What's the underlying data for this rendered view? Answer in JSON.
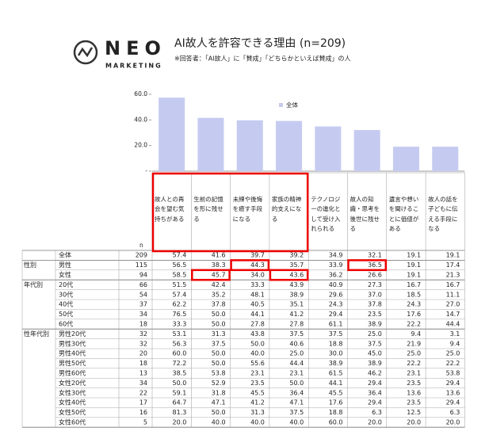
{
  "logo": {
    "name": "NEO",
    "sub": "MARKETING"
  },
  "chart_data": {
    "type": "bar",
    "title": "AI故人を許容できる理由 (n=209)",
    "subtitle": "※回答者：「AI故人」に「賛成」「どちらかといえば賛成」の人",
    "categories": [
      "故人との再会を望む気持ちがある",
      "生前の記憶を形に残せる",
      "未練や後悔を癒す手段になる",
      "家族の精神的支えになる",
      "テクノロジーの進化として受け入れられる",
      "故人の知識・思考を後世に残せる",
      "遺言や想いを聞けることに価値がある",
      "故人の話を子どもに伝える手段になる"
    ],
    "series": [
      {
        "name": "全体",
        "color": "#c5cbf0",
        "values": [
          57.4,
          41.6,
          39.7,
          39.2,
          34.9,
          32.1,
          19.1,
          19.1
        ]
      }
    ],
    "ylim": [
      0,
      60
    ],
    "yticks": [
      {
        "value": 0,
        "label": "-"
      },
      {
        "value": 20,
        "label": "20.0"
      },
      {
        "value": 40,
        "label": "40.0"
      },
      {
        "value": 60,
        "label": "60.0"
      }
    ],
    "legend": "top"
  },
  "table": {
    "n_header": "n",
    "sections": [
      {
        "rows": [
          {
            "label": "全体",
            "n": 209,
            "values": [
              "57.4",
              "41.6",
              "39.7",
              "39.2",
              "34.9",
              "32.1",
              "19.1",
              "19.1"
            ]
          }
        ]
      },
      {
        "label": "性別",
        "rows": [
          {
            "label": "男性",
            "n": 115,
            "values": [
              "56.5",
              "38.3",
              "44.3",
              "35.7",
              "33.9",
              "36.5",
              "19.1",
              "17.4"
            ]
          },
          {
            "label": "女性",
            "n": 94,
            "values": [
              "58.5",
              "45.7",
              "34.0",
              "43.6",
              "36.2",
              "26.6",
              "19.1",
              "21.3"
            ]
          }
        ]
      },
      {
        "label": "年代別",
        "rows": [
          {
            "label": "20代",
            "n": 66,
            "values": [
              "51.5",
              "42.4",
              "33.3",
              "43.9",
              "40.9",
              "27.3",
              "16.7",
              "16.7"
            ]
          },
          {
            "label": "30代",
            "n": 54,
            "values": [
              "57.4",
              "35.2",
              "48.1",
              "38.9",
              "29.6",
              "37.0",
              "18.5",
              "11.1"
            ]
          },
          {
            "label": "40代",
            "n": 37,
            "values": [
              "62.2",
              "37.8",
              "40.5",
              "35.1",
              "24.3",
              "37.8",
              "24.3",
              "27.0"
            ]
          },
          {
            "label": "50代",
            "n": 34,
            "values": [
              "76.5",
              "50.0",
              "44.1",
              "41.2",
              "29.4",
              "23.5",
              "17.6",
              "14.7"
            ]
          },
          {
            "label": "60代",
            "n": 18,
            "values": [
              "33.3",
              "50.0",
              "27.8",
              "27.8",
              "61.1",
              "38.9",
              "22.2",
              "44.4"
            ]
          }
        ]
      },
      {
        "label": "性年代別",
        "rows": [
          {
            "label": "男性20代",
            "n": 32,
            "values": [
              "53.1",
              "31.3",
              "43.8",
              "37.5",
              "37.5",
              "25.0",
              "9.4",
              "3.1"
            ]
          },
          {
            "label": "男性30代",
            "n": 32,
            "values": [
              "56.3",
              "37.5",
              "50.0",
              "40.6",
              "18.8",
              "37.5",
              "21.9",
              "9.4"
            ]
          },
          {
            "label": "男性40代",
            "n": 20,
            "values": [
              "60.0",
              "50.0",
              "40.0",
              "25.0",
              "30.0",
              "45.0",
              "25.0",
              "25.0"
            ]
          },
          {
            "label": "男性50代",
            "n": 18,
            "values": [
              "72.2",
              "50.0",
              "55.6",
              "44.4",
              "38.9",
              "38.9",
              "22.2",
              "22.2"
            ]
          },
          {
            "label": "男性60代",
            "n": 13,
            "values": [
              "38.5",
              "53.8",
              "23.1",
              "23.1",
              "61.5",
              "46.2",
              "23.1",
              "53.8"
            ]
          },
          {
            "label": "女性20代",
            "n": 34,
            "values": [
              "50.0",
              "52.9",
              "23.5",
              "50.0",
              "44.1",
              "29.4",
              "23.5",
              "29.4"
            ]
          },
          {
            "label": "女性30代",
            "n": 22,
            "values": [
              "59.1",
              "31.8",
              "45.5",
              "36.4",
              "45.5",
              "36.4",
              "13.6",
              "13.6"
            ]
          },
          {
            "label": "女性40代",
            "n": 17,
            "values": [
              "64.7",
              "47.1",
              "41.2",
              "47.1",
              "17.6",
              "29.4",
              "23.5",
              "29.4"
            ]
          },
          {
            "label": "女性50代",
            "n": 16,
            "values": [
              "81.3",
              "50.0",
              "31.3",
              "37.5",
              "18.8",
              "6.3",
              "12.5",
              "6.3"
            ]
          },
          {
            "label": "女性60代",
            "n": 5,
            "values": [
              "20.0",
              "40.0",
              "40.0",
              "40.0",
              "60.0",
              "20.0",
              "20.0",
              "20.0"
            ]
          }
        ]
      }
    ]
  }
}
